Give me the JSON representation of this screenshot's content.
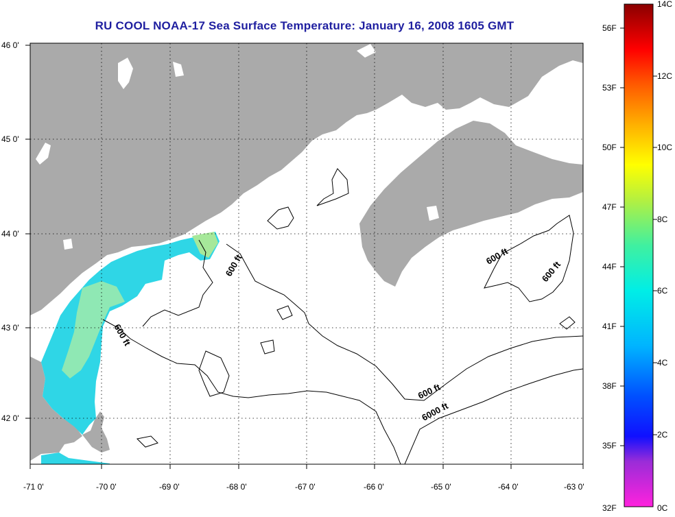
{
  "title": "RU COOL  NOAA-17  Sea Surface Temperature:  January 16, 2008 1605 GMT",
  "map": {
    "lon_labels": [
      "-71 0'",
      "-70 0'",
      "-69 0'",
      "-68 0'",
      "-67 0'",
      "-66 0'",
      "-65 0'",
      "-64 0'",
      "-63 0'"
    ],
    "lat_labels": [
      "46 0'",
      "45 0'",
      "44 0'",
      "43 0'",
      "42 0'"
    ],
    "contour_labels": [
      "600 ft",
      "600 ft",
      "600 ft",
      "600 ft",
      "600 ft",
      "6000 ft"
    ],
    "colors": {
      "land": "#aaaaaa",
      "water_nodata": "#ffffff",
      "grid": "#000000"
    }
  },
  "colorbar": {
    "f_labels": [
      "56F",
      "53F",
      "50F",
      "47F",
      "44F",
      "41F",
      "38F",
      "35F",
      "32F"
    ],
    "c_labels": [
      "14C",
      "12C",
      "10C",
      "8C",
      "6C",
      "4C",
      "2C",
      "0C"
    ]
  }
}
